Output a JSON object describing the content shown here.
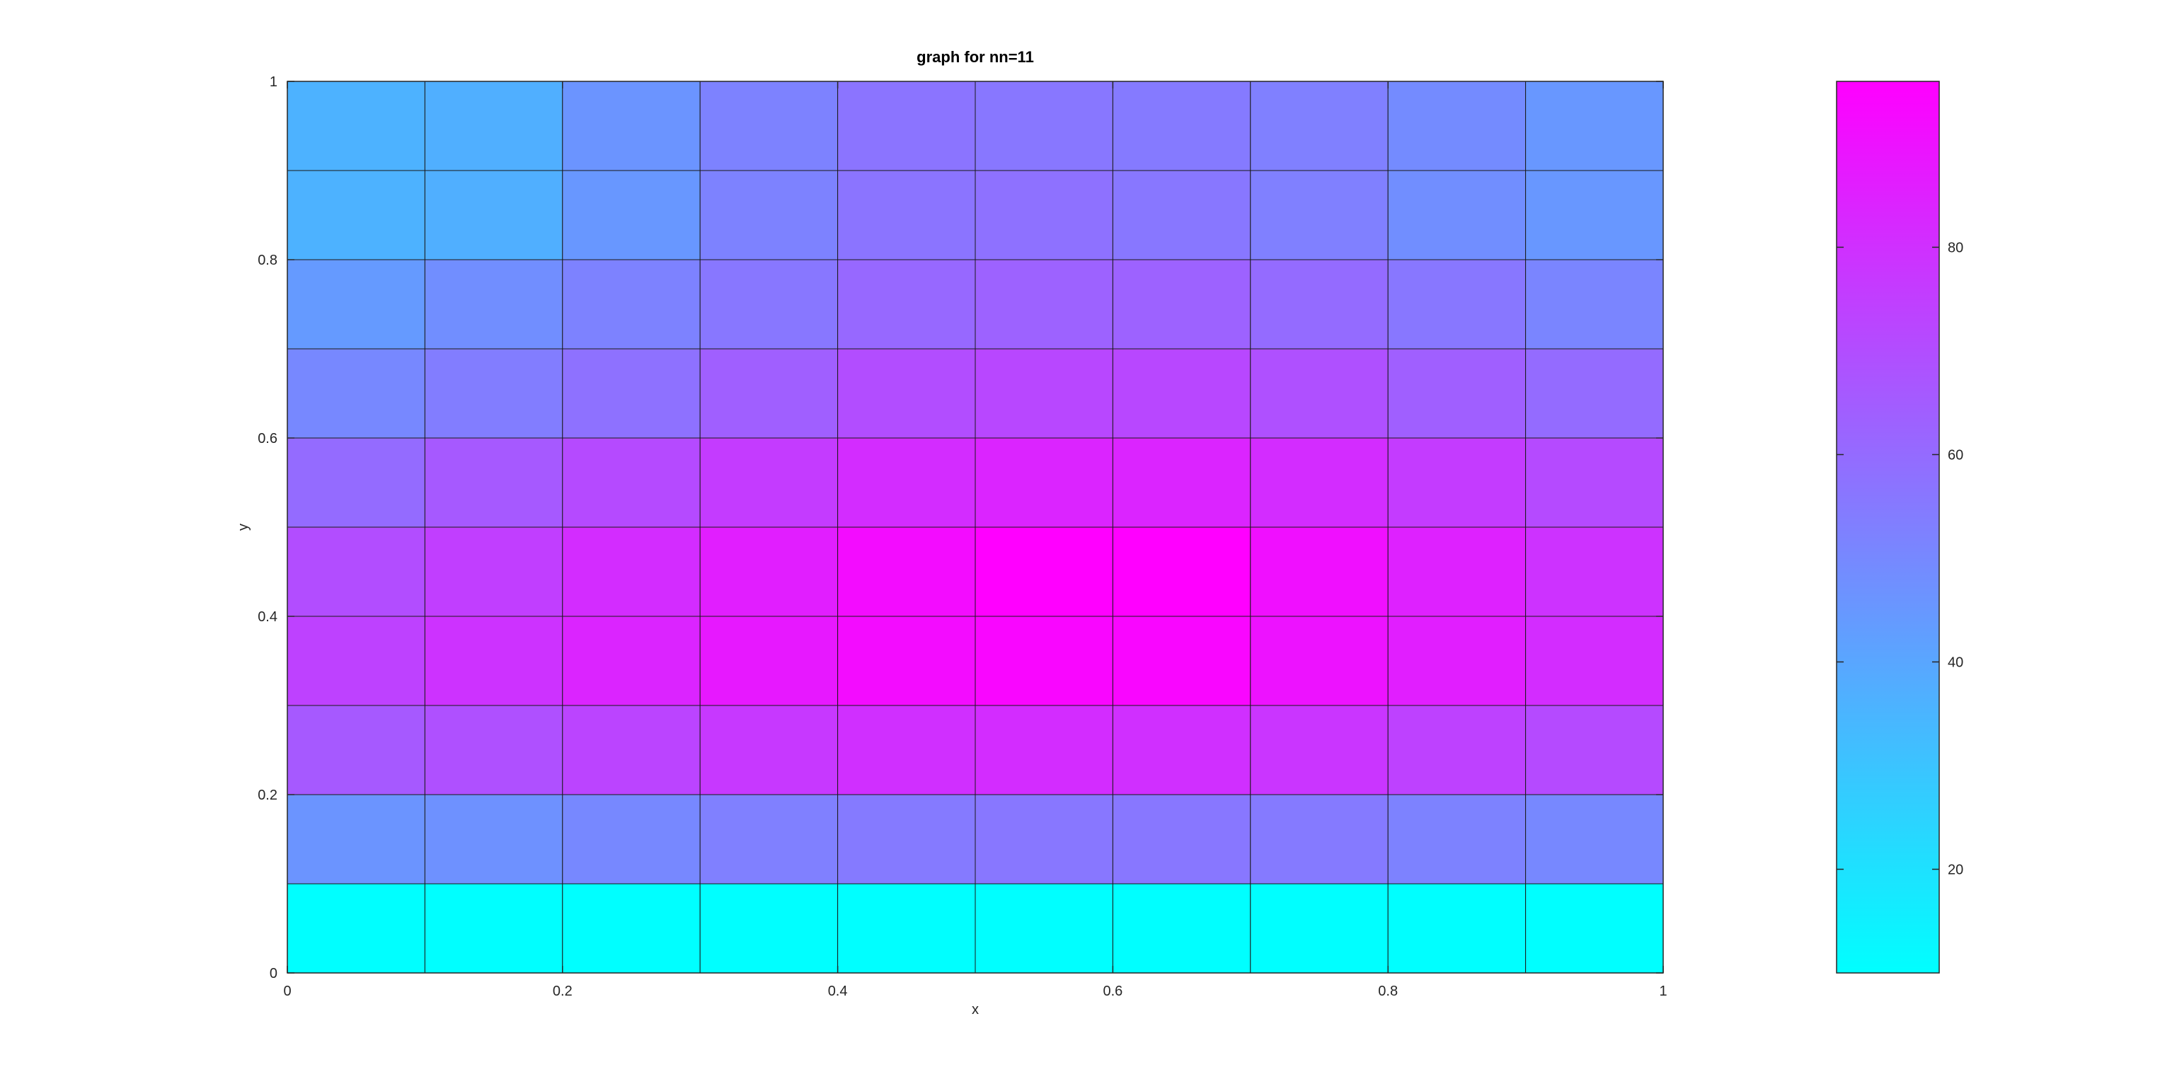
{
  "chart_data": {
    "type": "heatmap",
    "title": "graph for nn=11",
    "xlabel": "x",
    "ylabel": "y",
    "xlim": [
      0,
      1
    ],
    "ylim": [
      0,
      1
    ],
    "x_edges": [
      0,
      0.1,
      0.2,
      0.3,
      0.4,
      0.5,
      0.6,
      0.7,
      0.8,
      0.9,
      1.0
    ],
    "y_edges": [
      0,
      0.1,
      0.2,
      0.3,
      0.4,
      0.5,
      0.6,
      0.7,
      0.8,
      0.9,
      1.0
    ],
    "x_ticks": [
      0,
      0.2,
      0.4,
      0.6,
      0.8,
      1
    ],
    "x_tick_labels": [
      "0",
      "0.2",
      "0.4",
      "0.6",
      "0.8",
      "1"
    ],
    "y_ticks": [
      0,
      0.2,
      0.4,
      0.6,
      0.8,
      1
    ],
    "y_tick_labels": [
      "0",
      "0.2",
      "0.4",
      "0.6",
      "0.8",
      "1"
    ],
    "values_rows_bottom_to_top": [
      [
        10,
        10,
        10,
        10,
        10,
        10,
        10,
        10,
        10,
        10
      ],
      [
        46,
        47,
        50,
        53,
        55,
        56,
        56,
        55,
        52,
        50
      ],
      [
        66,
        69,
        73,
        77,
        80,
        81,
        80,
        78,
        74,
        71
      ],
      [
        74,
        79,
        84,
        88,
        92,
        94,
        94,
        90,
        86,
        81
      ],
      [
        70,
        75,
        81,
        86,
        92,
        96,
        96,
        91,
        85,
        79
      ],
      [
        60,
        66,
        71,
        76,
        81,
        84,
        84,
        81,
        76,
        71
      ],
      [
        50,
        54,
        58,
        64,
        70,
        72,
        72,
        69,
        64,
        60
      ],
      [
        44,
        48,
        52,
        56,
        61,
        63,
        63,
        60,
        56,
        51
      ],
      [
        36,
        37,
        45,
        52,
        57,
        58,
        56,
        53,
        48,
        45
      ],
      [
        36,
        37,
        46,
        52,
        57,
        56,
        55,
        53,
        49,
        45
      ]
    ],
    "colormap": "cool",
    "colormap_start": "#00ffff",
    "colormap_end": "#ff00ff",
    "colorbar": {
      "range": [
        10,
        96
      ],
      "ticks": [
        20,
        40,
        60,
        80
      ],
      "tick_labels": [
        "20",
        "40",
        "60",
        "80"
      ]
    },
    "grid": false
  }
}
